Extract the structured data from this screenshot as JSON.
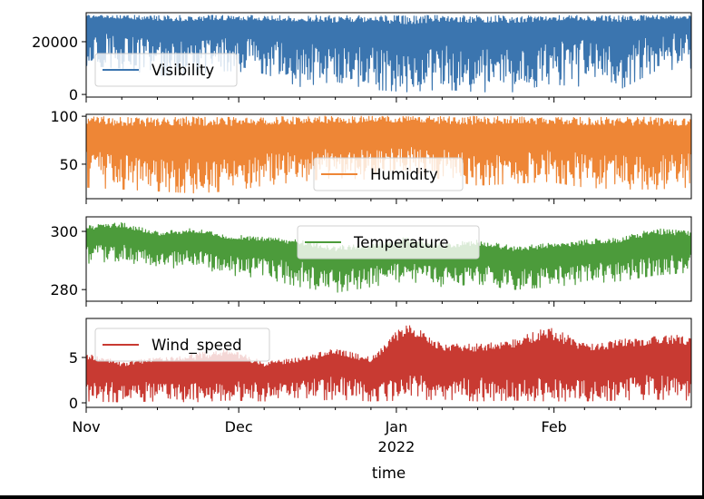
{
  "chart_data": {
    "type": "line",
    "xlabel": "time",
    "x_range": [
      "2021-11-01",
      "2022-02-28"
    ],
    "x_ticks": [
      {
        "label": "Nov",
        "date": "2021-11-01"
      },
      {
        "label": "Dec",
        "date": "2021-12-01"
      },
      {
        "label": "Jan",
        "date": "2022-01-01",
        "sublabel": "2022"
      },
      {
        "label": "Feb",
        "date": "2022-02-01"
      }
    ],
    "subplots": [
      {
        "name": "Visibility",
        "color": "#3b75af",
        "ylim": [
          -1000,
          31000
        ],
        "yticks": [
          {
            "value": 0,
            "label": "0"
          },
          {
            "value": 20000,
            "label": "20000"
          }
        ],
        "legend_loc": "lower-left",
        "series": {
          "name": "Visibility",
          "dates": [
            "2021-11-01",
            "2021-11-08",
            "2021-11-15",
            "2021-11-22",
            "2021-11-29",
            "2021-12-06",
            "2021-12-13",
            "2021-12-20",
            "2021-12-27",
            "2022-01-03",
            "2022-01-10",
            "2022-01-17",
            "2022-01-24",
            "2022-01-31",
            "2022-02-07",
            "2022-02-14",
            "2022-02-21",
            "2022-02-28"
          ],
          "mean": [
            25000,
            24000,
            21000,
            20000,
            22000,
            21000,
            20000,
            18000,
            19000,
            15000,
            19000,
            17000,
            18000,
            20000,
            21000,
            19000,
            23000,
            24000
          ],
          "low": [
            11000,
            10000,
            7000,
            8000,
            9000,
            8000,
            3000,
            5000,
            2000,
            1000,
            2000,
            1000,
            1000,
            4000,
            3000,
            2000,
            9000,
            10000
          ],
          "high": [
            30000,
            30000,
            30000,
            30000,
            30000,
            30000,
            30000,
            30000,
            30000,
            30000,
            30000,
            30000,
            30000,
            30000,
            30000,
            30000,
            30000,
            30000
          ]
        }
      },
      {
        "name": "Humidity",
        "color": "#ee8636",
        "ylim": [
          14,
          102
        ],
        "yticks": [
          {
            "value": 50,
            "label": "50"
          },
          {
            "value": 100,
            "label": "100"
          }
        ],
        "legend_loc": "lower-center",
        "series": {
          "name": "Humidity",
          "dates": [
            "2021-11-01",
            "2021-11-08",
            "2021-11-15",
            "2021-11-22",
            "2021-11-29",
            "2021-12-06",
            "2021-12-13",
            "2021-12-20",
            "2021-12-27",
            "2022-01-03",
            "2022-01-10",
            "2022-01-17",
            "2022-01-24",
            "2022-01-31",
            "2022-02-07",
            "2022-02-14",
            "2022-02-21",
            "2022-02-28"
          ],
          "mean": [
            65,
            60,
            58,
            56,
            58,
            62,
            64,
            68,
            66,
            70,
            66,
            62,
            64,
            66,
            62,
            60,
            60,
            62
          ],
          "low": [
            26,
            24,
            22,
            20,
            22,
            28,
            32,
            36,
            34,
            44,
            34,
            28,
            30,
            32,
            26,
            24,
            24,
            26
          ],
          "high": [
            100,
            99,
            98,
            100,
            99,
            100,
            100,
            100,
            100,
            100,
            100,
            100,
            100,
            99,
            99,
            99,
            99,
            99
          ]
        }
      },
      {
        "name": "Temperature",
        "color": "#4c9b3b",
        "ylim": [
          276,
          305
        ],
        "yticks": [
          {
            "value": 280,
            "label": "280"
          },
          {
            "value": 300,
            "label": "300"
          }
        ],
        "legend_loc": "upper-center",
        "series": {
          "name": "Temperature",
          "dates": [
            "2021-11-01",
            "2021-11-08",
            "2021-11-15",
            "2021-11-22",
            "2021-11-29",
            "2021-12-06",
            "2021-12-13",
            "2021-12-20",
            "2021-12-27",
            "2022-01-03",
            "2022-01-10",
            "2022-01-17",
            "2022-01-24",
            "2022-01-31",
            "2022-02-07",
            "2022-02-14",
            "2022-02-21",
            "2022-02-28"
          ],
          "mean": [
            295,
            296,
            293,
            294,
            292,
            291,
            290,
            287,
            288,
            290,
            288,
            289,
            287,
            288,
            289,
            290,
            292,
            293
          ],
          "low": [
            289,
            290,
            287,
            288,
            285,
            284,
            281,
            279,
            281,
            283,
            281,
            282,
            280,
            281,
            282,
            283,
            285,
            286
          ],
          "high": [
            302,
            303,
            300,
            301,
            299,
            298,
            297,
            295,
            296,
            298,
            296,
            297,
            295,
            296,
            297,
            298,
            301,
            300
          ]
        }
      },
      {
        "name": "Wind_speed",
        "color": "#c83a32",
        "ylim": [
          -0.5,
          9.3
        ],
        "yticks": [
          {
            "value": 0,
            "label": "0"
          },
          {
            "value": 5,
            "label": "5"
          }
        ],
        "legend_loc": "upper-left",
        "series": {
          "name": "Wind_speed",
          "dates": [
            "2021-11-01",
            "2021-11-08",
            "2021-11-15",
            "2021-11-22",
            "2021-11-29",
            "2021-12-06",
            "2021-12-13",
            "2021-12-20",
            "2021-12-27",
            "2022-01-03",
            "2022-01-10",
            "2022-01-17",
            "2022-01-24",
            "2022-01-31",
            "2022-02-07",
            "2022-02-14",
            "2022-02-21",
            "2022-02-28"
          ],
          "mean": [
            2.5,
            2.3,
            2.4,
            2.2,
            2.5,
            2.3,
            2.6,
            3.0,
            2.4,
            3.2,
            3.0,
            2.8,
            3.0,
            2.7,
            2.6,
            2.8,
            3.2,
            2.6
          ],
          "low": [
            0.2,
            0.1,
            0.2,
            0.1,
            0.3,
            0.2,
            0.2,
            0.4,
            0.2,
            0.3,
            0.4,
            0.2,
            0.3,
            0.2,
            0.2,
            0.3,
            0.4,
            0.3
          ],
          "high": [
            5.5,
            4.5,
            5.0,
            5.5,
            6.0,
            4.5,
            5.0,
            6.0,
            5.0,
            9.0,
            6.5,
            6.5,
            7.0,
            8.5,
            6.5,
            7.0,
            7.5,
            7.5
          ]
        }
      }
    ]
  }
}
